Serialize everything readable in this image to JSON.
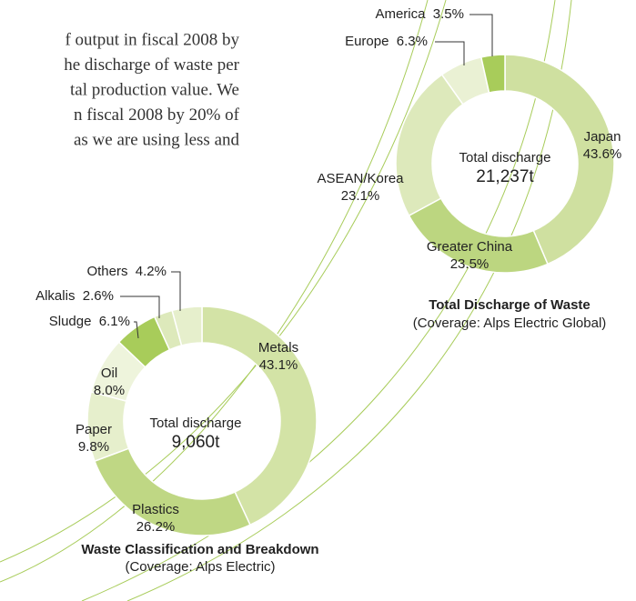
{
  "text_lines": [
    "f output in fiscal 2008 by",
    "he discharge of waste per",
    "tal production value. We",
    "n fiscal 2008 by 20% of",
    "as we are using less and"
  ],
  "chart_data": [
    {
      "type": "pie",
      "title": "Total Discharge of Waste",
      "subtitle": "(Coverage: Alps Electric Global)",
      "annotations": [
        "Total discharge",
        "21,237t"
      ],
      "categories": [
        "Japan",
        "Greater China",
        "ASEAN/Korea",
        "Europe",
        "America"
      ],
      "values": [
        43.6,
        23.5,
        23.1,
        6.3,
        3.5
      ],
      "value_labels": [
        "43.6%",
        "23.5%",
        "23.1%",
        "6.3%",
        "3.5%"
      ],
      "colors": [
        "#cfe0a0",
        "#bcd680",
        "#dde9bb",
        "#eaf1d4",
        "#a8cc5a"
      ]
    },
    {
      "type": "pie",
      "title": "Waste Classification and Breakdown",
      "subtitle": "(Coverage: Alps Electric)",
      "annotations": [
        "Total discharge",
        "9,060t"
      ],
      "categories": [
        "Metals",
        "Plastics",
        "Paper",
        "Oil",
        "Sludge",
        "Alkalis",
        "Others"
      ],
      "values": [
        43.1,
        26.2,
        9.8,
        8.0,
        6.1,
        2.6,
        4.2
      ],
      "value_labels": [
        "43.1%",
        "26.2%",
        "9.8%",
        "8.0%",
        "6.1%",
        "2.6%",
        "4.2%"
      ],
      "colors": [
        "#d3e3a6",
        "#bfd784",
        "#e6efcc",
        "#eef4dc",
        "#a8cc5a",
        "#dde9bb",
        "#e6efcc"
      ]
    }
  ]
}
